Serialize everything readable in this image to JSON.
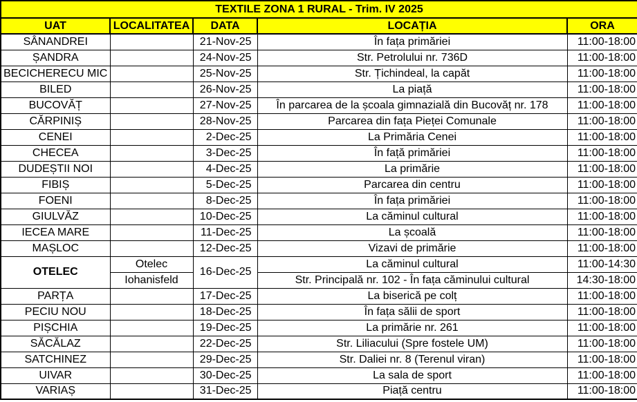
{
  "title": "TEXTILE ZONA 1 RURAL - Trim. IV 2025",
  "columns": [
    {
      "key": "uat",
      "label": "UAT"
    },
    {
      "key": "localitatea",
      "label": "LOCALITATEA"
    },
    {
      "key": "data",
      "label": "DATA"
    },
    {
      "key": "locatia",
      "label": "LOCAȚIA"
    },
    {
      "key": "ora",
      "label": "ORA"
    }
  ],
  "colors": {
    "header_bg": "#FFFF00",
    "border": "#000000",
    "text": "#000000",
    "row_bg": "#FFFFFF"
  },
  "rows": [
    {
      "uat": "SÂNANDREI",
      "localitatea": "",
      "data": "21-Nov-25",
      "locatia": "În fața primăriei",
      "ora": "11:00-18:00"
    },
    {
      "uat": "ȘANDRA",
      "localitatea": "",
      "data": "24-Nov-25",
      "locatia": "Str. Petrolului nr. 736D",
      "ora": "11:00-18:00"
    },
    {
      "uat": "BECICHERECU MIC",
      "localitatea": "",
      "data": "25-Nov-25",
      "locatia": "Str. Țichindeal, la capăt",
      "ora": "11:00-18:00"
    },
    {
      "uat": "BILED",
      "localitatea": "",
      "data": "26-Nov-25",
      "locatia": "La piață",
      "ora": "11:00-18:00"
    },
    {
      "uat": "BUCOVĂȚ",
      "localitatea": "",
      "data": "27-Nov-25",
      "locatia": "În parcarea de la școala gimnazială din Bucovăț nr. 178",
      "ora": "11:00-18:00"
    },
    {
      "uat": "CĂRPINIȘ",
      "localitatea": "",
      "data": "28-Nov-25",
      "locatia": "Parcarea din fața Pieței Comunale",
      "ora": "11:00-18:00"
    },
    {
      "uat": "CENEI",
      "localitatea": "",
      "data": "2-Dec-25",
      "locatia": "La Primăria Cenei",
      "ora": "11:00-18:00"
    },
    {
      "uat": "CHECEA",
      "localitatea": "",
      "data": "3-Dec-25",
      "locatia": "În față primăriei",
      "ora": "11:00-18:00"
    },
    {
      "uat": "DUDEȘTII NOI",
      "localitatea": "",
      "data": "4-Dec-25",
      "locatia": "La primărie",
      "ora": "11:00-18:00"
    },
    {
      "uat": "FIBIȘ",
      "localitatea": "",
      "data": "5-Dec-25",
      "locatia": "Parcarea din centru",
      "ora": "11:00-18:00"
    },
    {
      "uat": "FOENI",
      "localitatea": "",
      "data": "8-Dec-25",
      "locatia": "În fața primăriei",
      "ora": "11:00-18:00"
    },
    {
      "uat": "GIULVĂZ",
      "localitatea": "",
      "data": "10-Dec-25",
      "locatia": "La căminul cultural",
      "ora": "11:00-18:00"
    },
    {
      "uat": "IECEA MARE",
      "localitatea": "",
      "data": "11-Dec-25",
      "locatia": "La școală",
      "ora": "11:00-18:00"
    },
    {
      "uat": "MAȘLOC",
      "localitatea": "",
      "data": "12-Dec-25",
      "locatia": "Vizavi de primărie",
      "ora": "11:00-18:00"
    },
    {
      "uat": "OTELEC",
      "uat_bold": true,
      "data": "16-Dec-25",
      "subrows": [
        {
          "localitatea": "Otelec",
          "locatia": "La căminul cultural",
          "ora": "11:00-14:30"
        },
        {
          "localitatea": "Iohanisfeld",
          "locatia": "Str. Principală nr. 102 - În fața căminului cultural",
          "ora": "14:30-18:00"
        }
      ]
    },
    {
      "uat": "PARȚA",
      "localitatea": "",
      "data": "17-Dec-25",
      "locatia": "La biserică pe colț",
      "ora": "11:00-18:00"
    },
    {
      "uat": "PECIU NOU",
      "localitatea": "",
      "data": "18-Dec-25",
      "locatia": "În fața sălii de sport",
      "ora": "11:00-18:00"
    },
    {
      "uat": "PIȘCHIA",
      "localitatea": "",
      "data": "19-Dec-25",
      "locatia": "La primărie nr. 261",
      "ora": "11:00-18:00"
    },
    {
      "uat": "SĂCĂLAZ",
      "localitatea": "",
      "data": "22-Dec-25",
      "locatia": "Str. Liliacului (Spre fostele UM)",
      "ora": "11:00-18:00"
    },
    {
      "uat": "SATCHINEZ",
      "localitatea": "",
      "data": "29-Dec-25",
      "locatia": "Str. Daliei nr. 8 (Terenul viran)",
      "ora": "11:00-18:00"
    },
    {
      "uat": "UIVAR",
      "localitatea": "",
      "data": "30-Dec-25",
      "locatia": "La sala de sport",
      "ora": "11:00-18:00"
    },
    {
      "uat": "VARIAȘ",
      "localitatea": "",
      "data": "31-Dec-25",
      "locatia": "Piață centru",
      "ora": "11:00-18:00"
    }
  ]
}
